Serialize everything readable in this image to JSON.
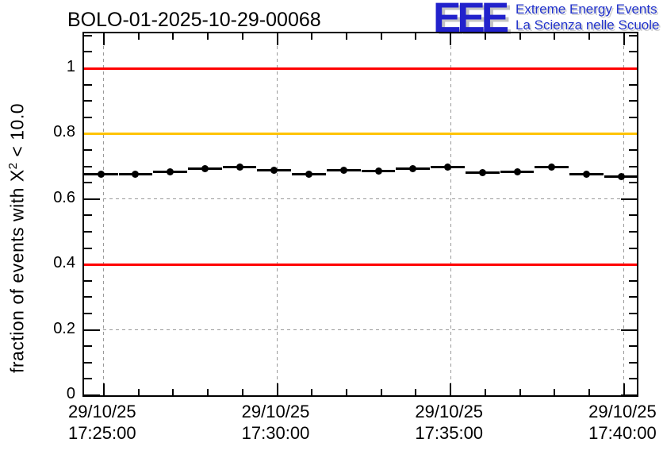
{
  "header": {
    "title": "BOLO-01-2025-10-29-00068"
  },
  "logo": {
    "acronym": "EEE",
    "line1": "Extreme Energy Events",
    "line2": "La Scienza nelle Scuole",
    "blue": "#2222cc"
  },
  "y_axis_title": {
    "pre": "fraction of events with X",
    "sup": "2",
    "post": " < 10.0"
  },
  "colors": {
    "grid": "#9a9a9a",
    "frame": "#000000",
    "red": "#ff0000",
    "orange": "#ffc300",
    "marker": "#000000"
  },
  "chart_data": {
    "type": "scatter",
    "title": "BOLO-01-2025-10-29-00068",
    "xlabel": "",
    "ylabel": "fraction of events with X^2 < 10.0",
    "grid": true,
    "legend": "none",
    "xlim": [
      "17:24:26",
      "17:40:22"
    ],
    "ylim": [
      0,
      1.107
    ],
    "x_minor_step_seconds": 60,
    "y_minor_step": 0.05,
    "x_major_ticks": [
      {
        "date": "29/10/25",
        "time": "17:25:00"
      },
      {
        "date": "29/10/25",
        "time": "17:30:00"
      },
      {
        "date": "29/10/25",
        "time": "17:35:00"
      },
      {
        "date": "29/10/25",
        "time": "17:40:00"
      }
    ],
    "y_major_ticks": [
      {
        "label": "0",
        "value": 0.0
      },
      {
        "label": "0.2",
        "value": 0.2
      },
      {
        "label": "0.4",
        "value": 0.4
      },
      {
        "label": "0.6",
        "value": 0.6
      },
      {
        "label": "0.8",
        "value": 0.8
      },
      {
        "label": "1",
        "value": 1.0
      }
    ],
    "reference_lines": [
      {
        "value": 1.0,
        "color": "#ff0000"
      },
      {
        "value": 0.8,
        "color": "#ffc300"
      },
      {
        "value": 0.4,
        "color": "#ff0000"
      }
    ],
    "series": [
      {
        "name": "fraction of events with chi2 < 10",
        "marker": "filled-circle",
        "color": "#000000",
        "xerr_seconds": 30,
        "yerr": 0.005,
        "x_times": [
          "17:24:55",
          "17:25:55",
          "17:26:55",
          "17:27:55",
          "17:28:55",
          "17:29:55",
          "17:30:55",
          "17:31:55",
          "17:32:55",
          "17:33:55",
          "17:34:55",
          "17:35:55",
          "17:36:55",
          "17:37:55",
          "17:38:55",
          "17:39:55"
        ],
        "values": [
          0.675,
          0.675,
          0.684,
          0.692,
          0.697,
          0.689,
          0.677,
          0.689,
          0.687,
          0.692,
          0.697,
          0.68,
          0.684,
          0.699,
          0.675,
          0.67
        ]
      }
    ]
  }
}
